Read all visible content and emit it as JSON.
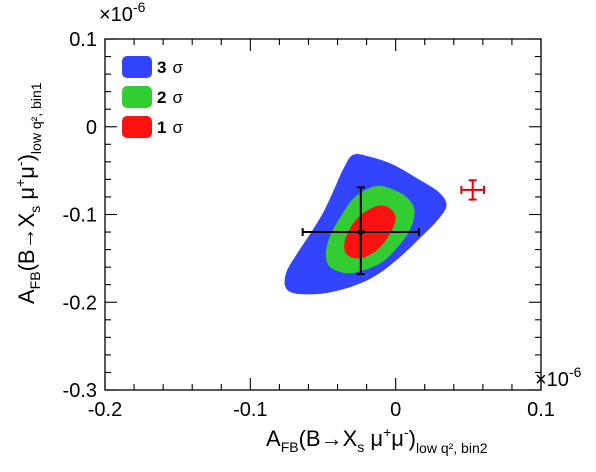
{
  "chart_data": {
    "type": "contour",
    "xlabel": {
      "main": "A",
      "sub1": "FB",
      "mid": "(B",
      "arrow": "→",
      "mid2": "X",
      "sub2": "s",
      "mu": " μ",
      "sup1": "+",
      "mu2": "μ",
      "sup2": "-",
      "close": ")",
      "sub3": "low q², bin2"
    },
    "ylabel": {
      "main": "A",
      "sub1": "FB",
      "mid": "(B",
      "arrow": "→",
      "mid2": "X",
      "sub2": "s",
      "mu": " μ",
      "sup1": "+",
      "mu2": "μ",
      "sup2": "-",
      "close": ")",
      "sub3": "low q², bin1"
    },
    "x_multiplier": "×10",
    "x_multiplier_exp": "-6",
    "y_multiplier": "×10",
    "y_multiplier_exp": "-6",
    "xlim": [
      -0.2,
      0.1
    ],
    "ylim": [
      -0.3,
      0.1
    ],
    "x_ticks": [
      -0.2,
      -0.1,
      0,
      0.1
    ],
    "x_tick_labels": [
      "-0.2",
      "-0.1",
      "0",
      "0.1"
    ],
    "y_ticks": [
      0.1,
      0,
      -0.1,
      -0.2,
      -0.3
    ],
    "y_tick_labels": [
      "0.1",
      "0",
      "-0.1",
      "-0.2",
      "-0.3"
    ],
    "legend": [
      {
        "num": "3",
        "sym": "σ",
        "color": "#3344ff"
      },
      {
        "num": "2",
        "sym": "σ",
        "color": "#33cc33"
      },
      {
        "num": "1",
        "sym": "σ",
        "color": "#ff1111"
      }
    ],
    "contours": [
      {
        "level": "3 sigma",
        "color": "#3344ff",
        "points": [
          [
            -0.0294,
            -0.032
          ],
          [
            -0.018,
            -0.034
          ],
          [
            -0.002,
            -0.043
          ],
          [
            0.016,
            -0.06
          ],
          [
            0.03,
            -0.075
          ],
          [
            0.035,
            -0.09
          ],
          [
            0.028,
            -0.108
          ],
          [
            0.016,
            -0.128
          ],
          [
            0.002,
            -0.15
          ],
          [
            -0.014,
            -0.17
          ],
          [
            -0.03,
            -0.182
          ],
          [
            -0.05,
            -0.19
          ],
          [
            -0.069,
            -0.19
          ],
          [
            -0.076,
            -0.182
          ],
          [
            -0.075,
            -0.165
          ],
          [
            -0.068,
            -0.145
          ],
          [
            -0.058,
            -0.12
          ],
          [
            -0.049,
            -0.095
          ],
          [
            -0.042,
            -0.07
          ],
          [
            -0.036,
            -0.048
          ]
        ]
      },
      {
        "level": "2 sigma",
        "color": "#33cc33",
        "points": [
          [
            -0.0146,
            -0.068
          ],
          [
            -0.004,
            -0.07
          ],
          [
            0.008,
            -0.081
          ],
          [
            0.013,
            -0.096
          ],
          [
            0.01,
            -0.117
          ],
          [
            0.001,
            -0.138
          ],
          [
            -0.01,
            -0.155
          ],
          [
            -0.023,
            -0.164
          ],
          [
            -0.034,
            -0.167
          ],
          [
            -0.045,
            -0.16
          ],
          [
            -0.048,
            -0.145
          ],
          [
            -0.045,
            -0.124
          ],
          [
            -0.037,
            -0.1
          ],
          [
            -0.028,
            -0.08
          ]
        ]
      },
      {
        "level": "1 sigma",
        "color": "#ff1111",
        "points": [
          [
            -0.0117,
            -0.09
          ],
          [
            -0.004,
            -0.093
          ],
          [
            0.0,
            -0.105
          ],
          [
            -0.005,
            -0.125
          ],
          [
            -0.014,
            -0.142
          ],
          [
            -0.025,
            -0.15
          ],
          [
            -0.034,
            -0.145
          ],
          [
            -0.035,
            -0.13
          ],
          [
            -0.03,
            -0.112
          ],
          [
            -0.022,
            -0.098
          ]
        ]
      }
    ],
    "points": [
      {
        "name": "black",
        "x": -0.024,
        "y": -0.12,
        "xerr": [
          0.04,
          0.04
        ],
        "yerr": [
          0.048,
          0.051
        ],
        "color": "#000000",
        "marker": "dot"
      },
      {
        "name": "red",
        "x": 0.053,
        "y": -0.072,
        "xerr": [
          0.0078,
          0.0078
        ],
        "yerr": [
          0.011,
          0.011
        ],
        "color": "#dd0000",
        "marker": "none"
      }
    ]
  }
}
